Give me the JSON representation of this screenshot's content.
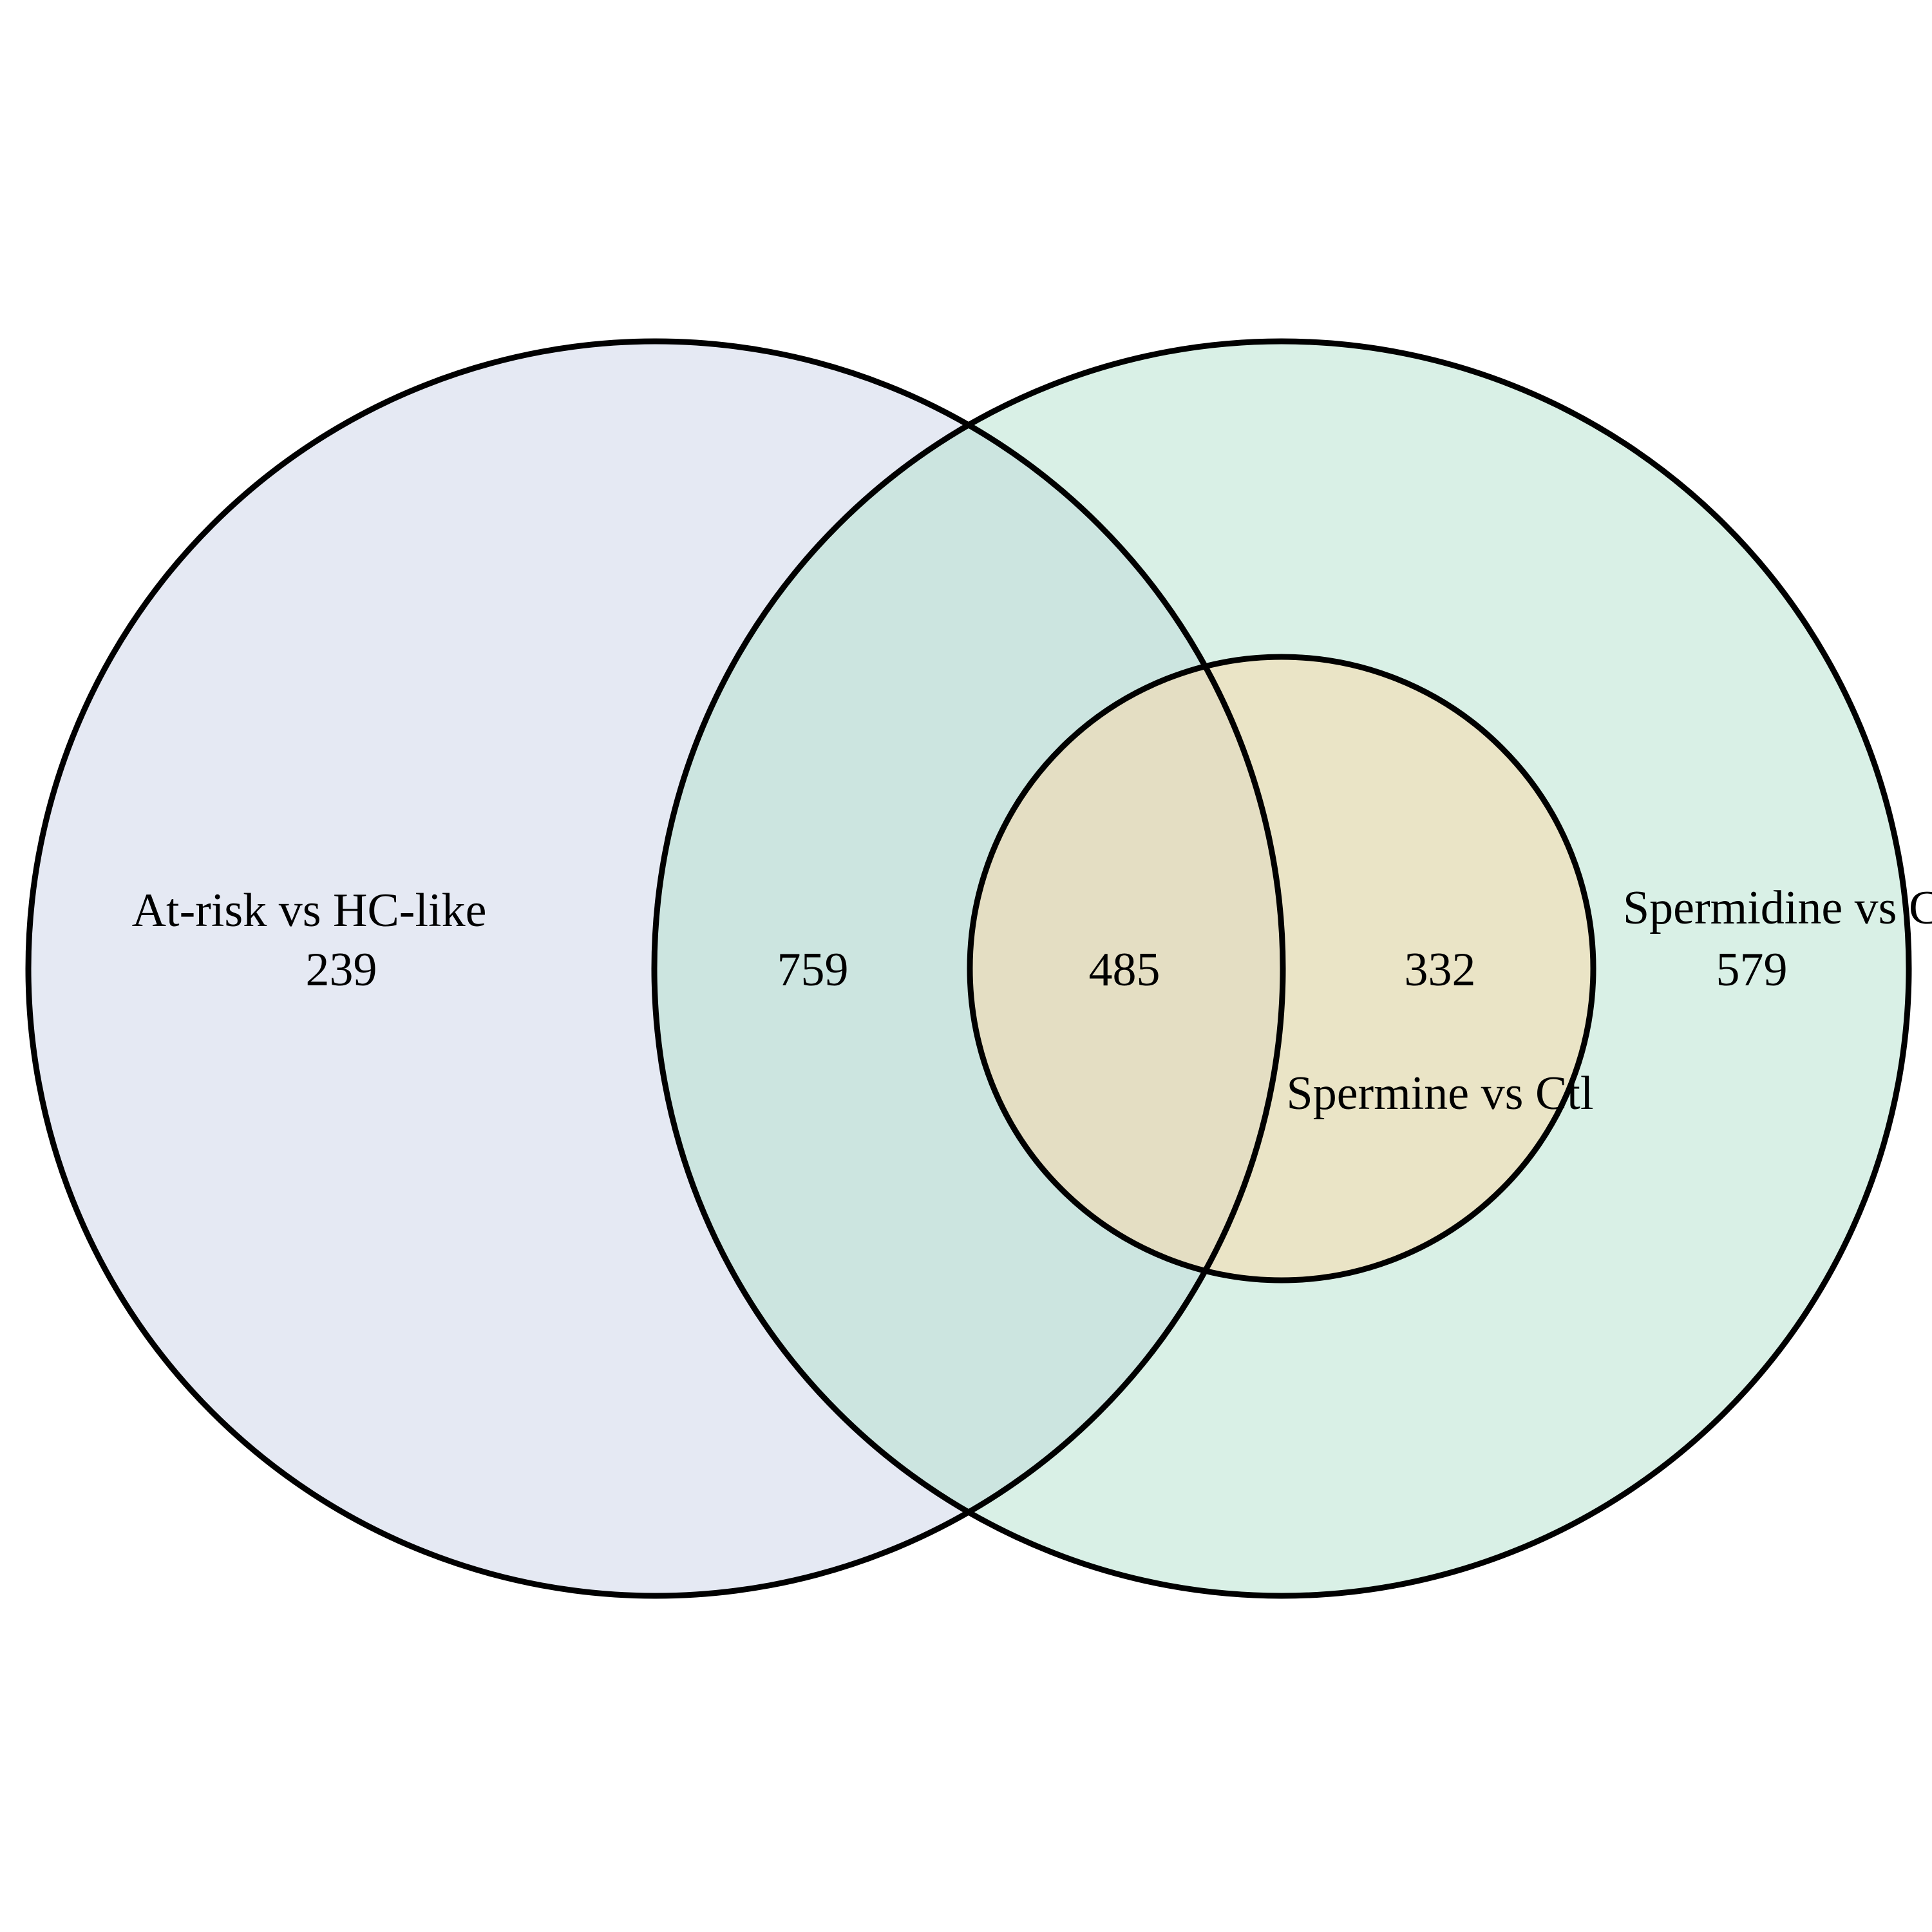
{
  "sets": [
    {
      "id": "A",
      "label": "At-risk vs HC-like",
      "color": "#c8d2e6"
    },
    {
      "id": "B",
      "label": "Spermidine vs Ctl",
      "color": "#b4e1cd"
    },
    {
      "id": "C",
      "label": "Spermine vs Ctl",
      "color": "#fcd7a6"
    }
  ],
  "regions": [
    {
      "sets": [
        "A"
      ],
      "value": "239"
    },
    {
      "sets": [
        "A",
        "B"
      ],
      "value": "759"
    },
    {
      "sets": [
        "A",
        "B",
        "C"
      ],
      "value": "485"
    },
    {
      "sets": [
        "B",
        "C"
      ],
      "value": "332"
    },
    {
      "sets": [
        "B"
      ],
      "value": "579"
    }
  ],
  "colors": {
    "outline": "#000000",
    "background": "#ffffff"
  }
}
